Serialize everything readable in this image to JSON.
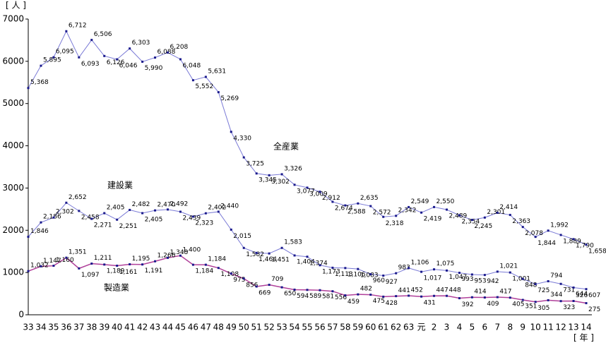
{
  "chart_data": {
    "type": "line",
    "y_label": "[ 人 ]",
    "x_label": "[ 年 ]",
    "categories": [
      "33",
      "34",
      "35",
      "36",
      "37",
      "38",
      "39",
      "40",
      "41",
      "42",
      "43",
      "44",
      "45",
      "46",
      "47",
      "48",
      "49",
      "50",
      "51",
      "52",
      "53",
      "54",
      "55",
      "56",
      "57",
      "58",
      "59",
      "60",
      "61",
      "62",
      "63",
      "元",
      "2",
      "3",
      "4",
      "5",
      "6",
      "7",
      "8",
      "9",
      "10",
      "11",
      "12",
      "13",
      "14"
    ],
    "ylim": [
      0,
      7000
    ],
    "yticks": [
      0,
      1000,
      2000,
      3000,
      4000,
      5000,
      6000,
      7000
    ],
    "series": [
      {
        "name": "全産業",
        "color": "#7a7ad6",
        "values": [
          5368,
          5895,
          6095,
          6712,
          6093,
          6506,
          6126,
          6046,
          6303,
          5990,
          6088,
          6208,
          6048,
          5552,
          5631,
          5269,
          4330,
          3725,
          3345,
          3302,
          3326,
          3077,
          3009,
          2912,
          2674,
          2588,
          2635,
          2572,
          2318,
          2342,
          2549,
          2419,
          2550,
          2489,
          2354,
          2245,
          2301,
          2414,
          2363,
          2078,
          1844,
          1992,
          1889,
          1790,
          1658
        ],
        "value_labels": [
          "5,368",
          "5,895",
          "6,095",
          "6,712",
          "6,093",
          "6,506",
          "6,126",
          "6,046",
          "6,303",
          "5,990",
          "6,088",
          "6,208",
          "6,048",
          "5,552",
          "5,631",
          "5,269",
          "4,330",
          "3,725",
          "3,345",
          "3,302",
          "3,326",
          "3,077",
          "3,009",
          "2,912",
          "2,674",
          "2,588",
          "2,635",
          "2,572",
          "2,318",
          "2,342",
          "2,549",
          "2,419",
          "2,550",
          "2,489",
          "2,354",
          "2,245",
          "2,301",
          "2,414",
          "2,363",
          "2,078",
          "1,844",
          "1,992",
          "1,889",
          "1,790",
          "1,658"
        ]
      },
      {
        "name": "建設業",
        "color": "#7a7ad6",
        "values": [
          1846,
          2186,
          2302,
          2652,
          2458,
          2271,
          2405,
          2251,
          2482,
          2405,
          2470,
          2492,
          2439,
          2323,
          2402,
          2440,
          2015,
          1582,
          1464,
          1451,
          1583,
          1404,
          1374,
          1173,
          1113,
          1106,
          1083,
          960,
          927,
          983,
          1106,
          1017,
          1075,
          1047,
          993,
          953,
          942,
          1021,
          1001,
          848,
          725,
          794,
          731,
          644,
          607
        ],
        "value_labels": [
          "1,846",
          "2,186",
          "2,302",
          "2,652",
          "2,458",
          "2,271",
          "2,405",
          "2,251",
          "2,482",
          "2,405",
          "2,470",
          "2,492",
          "2,439",
          "2,323",
          "2,402",
          "2,440",
          "2,015",
          "1,582",
          "1,464",
          "1,451",
          "1,583",
          "1,404",
          "1,374",
          "1,173",
          "1,113",
          "1,106",
          "1,083",
          "960",
          "927",
          "983",
          "1,106",
          "1,017",
          "1,075",
          "1,047",
          "993",
          "953",
          "942",
          "1,021",
          "1,001",
          "848",
          "725",
          "794",
          "731",
          "644",
          "607"
        ]
      },
      {
        "name": "製造業",
        "color": "#b0409a",
        "values": [
          1032,
          1147,
          1160,
          1351,
          1097,
          1211,
          1189,
          1161,
          1195,
          1191,
          1266,
          1348,
          1400,
          1184,
          1184,
          1108,
          975,
          856,
          669,
          709,
          650,
          594,
          589,
          581,
          556,
          459,
          482,
          475,
          428,
          441,
          452,
          431,
          447,
          448,
          392,
          414,
          409,
          417,
          405,
          351,
          305,
          344,
          323,
          326,
          275
        ],
        "value_labels": [
          "1,032",
          "1,147",
          "1,160",
          "1,351",
          "1,097",
          "1,211",
          "1,189",
          "1,161",
          "1,195",
          "1,191",
          "1,266",
          "1,348",
          "1,400",
          "1,184",
          "1,184",
          "1,108",
          "975",
          "856",
          "669",
          "709",
          "650",
          "594",
          "589",
          "581",
          "556",
          "459",
          "482",
          "475",
          "428",
          "441",
          "452",
          "431",
          "447",
          "448",
          "392",
          "414",
          "409",
          "417",
          "405",
          "351",
          "305",
          "344",
          "323",
          "326",
          "275"
        ]
      }
    ]
  }
}
